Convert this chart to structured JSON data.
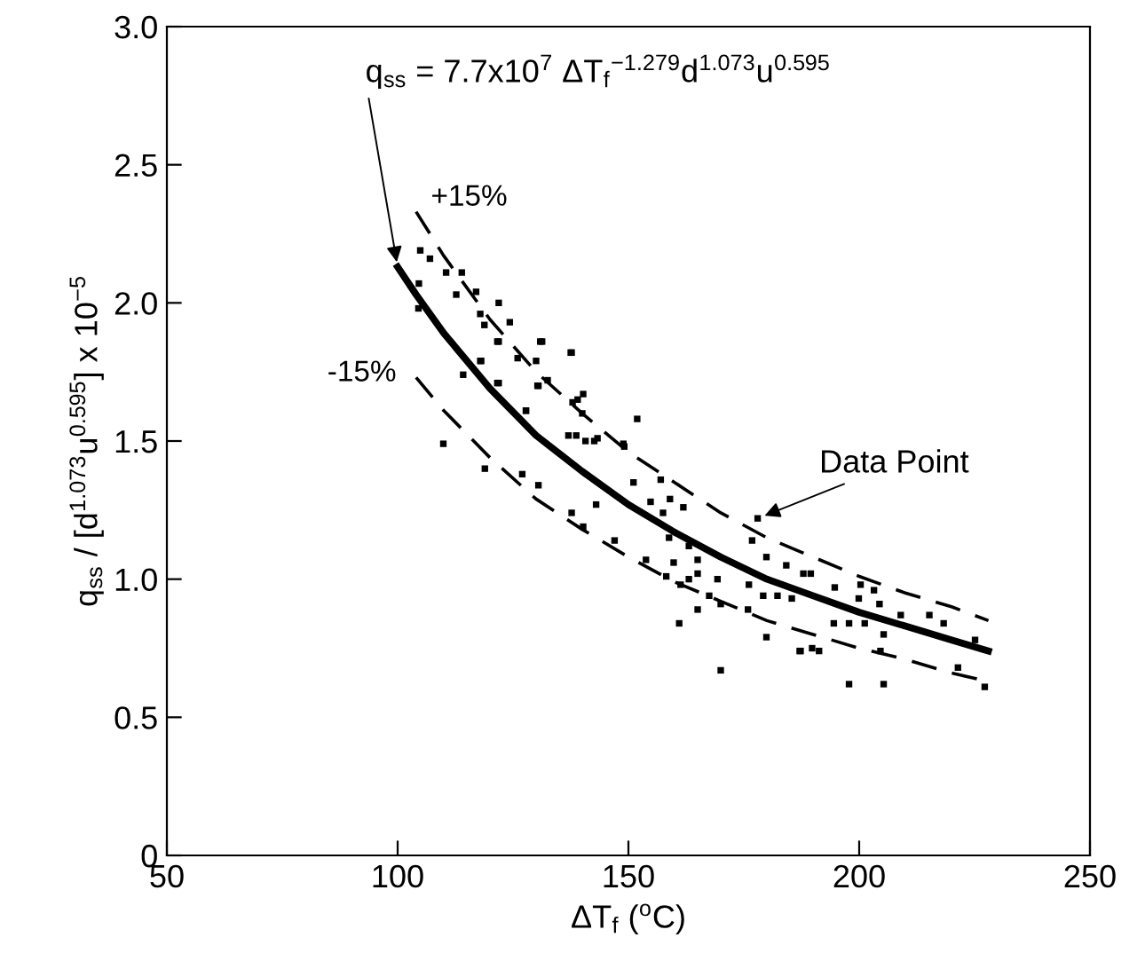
{
  "chart_data": {
    "type": "scatter",
    "xlabel": "ΔT$_{f}$ ($^{o}$C)",
    "ylabel": "q$_{ss}$ / [d$^{1.073}$u$^{0.595}$] x 10$^{−5}$",
    "xlim": [
      50,
      250
    ],
    "xticks": [
      50,
      100,
      150,
      200,
      250
    ],
    "ylim": [
      0,
      3.0
    ],
    "yticks": [
      {
        "value": 0,
        "label": "0"
      },
      {
        "value": 0.5,
        "label": "0.5"
      },
      {
        "value": 1.0,
        "label": "1.0"
      },
      {
        "value": 1.5,
        "label": "1.5"
      },
      {
        "value": 2.0,
        "label": "2.0"
      },
      {
        "value": 2.5,
        "label": "2.5"
      },
      {
        "value": 3.0,
        "label": "3.0"
      }
    ],
    "grid": false,
    "legend": false,
    "series": [
      {
        "name": "q$_{ss}$ = 7.7x10$^{7}$ ΔT$_{f}$$^{−1.279}$d$^{1.073}$u$^{0.595}$",
        "type": "line",
        "line_style": "solid",
        "marker": "none",
        "color": "#000000",
        "x": [
          100,
          104,
          110,
          120,
          130,
          140,
          150,
          160,
          170,
          180,
          190,
          200,
          210,
          220,
          228
        ],
        "values": [
          2.13,
          2.03,
          1.89,
          1.69,
          1.52,
          1.39,
          1.27,
          1.17,
          1.08,
          1.0,
          0.94,
          0.88,
          0.83,
          0.78,
          0.74
        ]
      },
      {
        "name": "+15%",
        "type": "line",
        "line_style": "dashed",
        "marker": "none",
        "color": "#000000",
        "x": [
          104,
          110,
          120,
          130,
          140,
          150,
          160,
          170,
          180,
          190,
          200,
          210,
          220,
          228
        ],
        "values": [
          2.33,
          2.17,
          1.94,
          1.75,
          1.6,
          1.46,
          1.35,
          1.24,
          1.15,
          1.08,
          1.01,
          0.95,
          0.9,
          0.85
        ]
      },
      {
        "name": "-15%",
        "type": "line",
        "line_style": "dashed",
        "marker": "none",
        "color": "#000000",
        "x": [
          104,
          110,
          120,
          130,
          140,
          150,
          160,
          170,
          180,
          190,
          200,
          210,
          220,
          228
        ],
        "values": [
          1.73,
          1.61,
          1.44,
          1.29,
          1.18,
          1.08,
          0.99,
          0.92,
          0.85,
          0.8,
          0.75,
          0.71,
          0.66,
          0.63
        ]
      },
      {
        "marker": "square",
        "color": "#000000",
        "x": [
          104.9,
          107,
          110.5,
          113.9,
          104.6,
          112.7,
          117,
          117.9,
          121.9,
          118.8,
          124.3,
          121.9,
          126,
          131.3,
          137.5,
          118.1,
          114.2,
          121.6,
          130.3,
          132.5,
          139,
          140,
          127.8,
          109.9,
          104.5,
          138.7,
          142.6,
          149.1,
          130.9,
          137.7,
          121.6,
          117.9,
          130,
          121.9,
          130.5,
          140.2,
          127.8,
          137.9,
          151.9,
          137,
          140.7,
          143.3,
          148.9,
          118.9,
          127,
          130.5,
          137.7,
          143,
          151.1,
          157,
          154.8,
          159,
          161.9,
          157.5,
          140.2,
          147,
          153.8,
          158.8,
          163.1,
          165,
          159.8,
          158.2,
          161.3,
          163.1,
          165,
          169.3,
          165,
          161,
          167.5,
          170,
          170,
          176.8,
          178,
          179.9,
          184.2,
          187.9,
          176.1,
          179.2,
          182.3,
          175.9,
          179.9,
          187.1,
          189.8,
          185.4,
          189.5,
          194.7,
          200.3,
          203.2,
          199.9,
          204.4,
          209,
          215.2,
          218.3,
          194.5,
          197.8,
          201.2,
          205.3,
          187.3,
          191.3,
          204.6,
          221.4,
          197.8,
          205.3,
          227.2,
          225.1
        ],
        "values": [
          2.19,
          2.16,
          2.11,
          2.11,
          2.07,
          2.03,
          2.04,
          1.96,
          2.0,
          1.92,
          1.93,
          1.86,
          1.8,
          1.86,
          1.82,
          1.79,
          1.74,
          1.71,
          1.7,
          1.72,
          1.65,
          1.6,
          1.61,
          1.49,
          1.98,
          1.52,
          1.5,
          1.48,
          1.86,
          1.82,
          1.86,
          1.79,
          1.79,
          1.71,
          1.7,
          1.67,
          1.61,
          1.64,
          1.58,
          1.52,
          1.5,
          1.51,
          1.49,
          1.4,
          1.38,
          1.34,
          1.24,
          1.27,
          1.35,
          1.36,
          1.28,
          1.29,
          1.26,
          1.24,
          1.19,
          1.14,
          1.07,
          1.15,
          1.12,
          1.07,
          1.06,
          1.01,
          0.98,
          1.0,
          1.02,
          1.0,
          0.89,
          0.84,
          0.94,
          0.91,
          0.67,
          1.14,
          1.22,
          1.08,
          1.05,
          1.02,
          0.98,
          0.94,
          0.94,
          0.89,
          0.79,
          0.74,
          0.75,
          0.93,
          1.02,
          0.97,
          0.98,
          0.96,
          0.93,
          0.91,
          0.87,
          0.87,
          0.84,
          0.84,
          0.84,
          0.84,
          0.8,
          0.74,
          0.74,
          0.74,
          0.68,
          0.62,
          0.62,
          0.61,
          0.78
        ]
      }
    ],
    "annotations": [
      {
        "text": "Data Point",
        "x": 178,
        "y": 1.22
      }
    ]
  }
}
